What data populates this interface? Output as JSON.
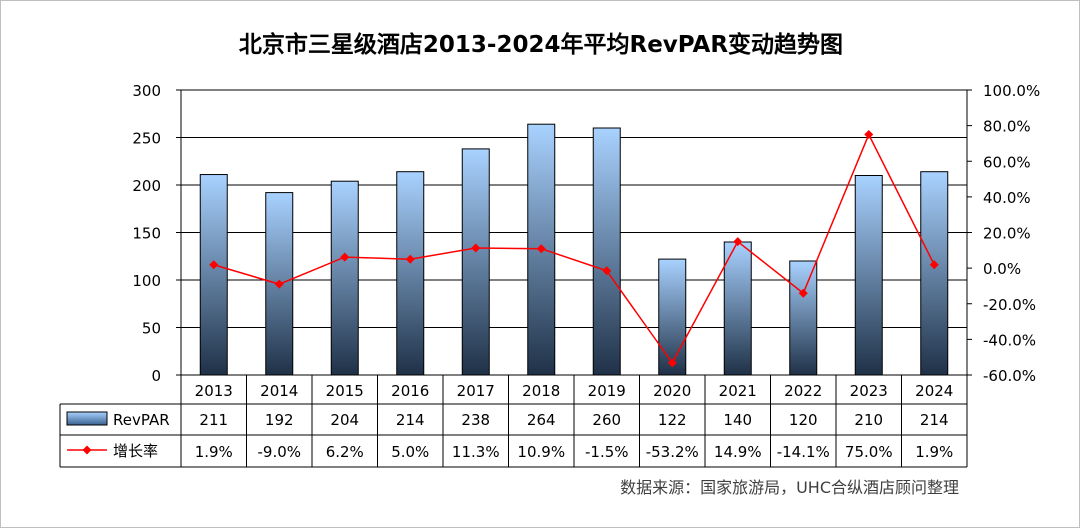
{
  "chart_data": {
    "type": "bar",
    "title": "北京市三星级酒店2013-2024年平均RevPAR变动趋势图",
    "categories": [
      "2013",
      "2014",
      "2015",
      "2016",
      "2017",
      "2018",
      "2019",
      "2020",
      "2021",
      "2022",
      "2023",
      "2024"
    ],
    "series": [
      {
        "name": "RevPAR",
        "type": "bar",
        "axis": "left",
        "values": [
          211,
          192,
          204,
          214,
          238,
          264,
          260,
          122,
          140,
          120,
          210,
          214
        ],
        "labels": [
          "211",
          "192",
          "204",
          "214",
          "238",
          "264",
          "260",
          "122",
          "140",
          "120",
          "210",
          "214"
        ],
        "color_top": "#a9d2ff",
        "color_bottom": "#1f3147"
      },
      {
        "name": "增长率",
        "type": "line",
        "axis": "right",
        "values": [
          1.9,
          -9.0,
          6.2,
          5.0,
          11.3,
          10.9,
          -1.5,
          -53.2,
          14.9,
          -14.1,
          75.0,
          1.9
        ],
        "labels": [
          "1.9%",
          "-9.0%",
          "6.2%",
          "5.0%",
          "11.3%",
          "10.9%",
          "-1.5%",
          "-53.2%",
          "14.9%",
          "-14.1%",
          "75.0%",
          "1.9%"
        ],
        "color": "#ff0000"
      }
    ],
    "y_left": {
      "ylim": [
        0,
        300
      ],
      "ticks": [
        "0",
        "50",
        "100",
        "150",
        "200",
        "250",
        "300"
      ]
    },
    "y_right": {
      "ylim": [
        -60,
        100
      ],
      "ticks": [
        "-60.0%",
        "-40.0%",
        "-20.0%",
        "0.0%",
        "20.0%",
        "40.0%",
        "60.0%",
        "80.0%",
        "100.0%"
      ]
    },
    "grid": true,
    "legend": "data-table"
  },
  "source_text": "数据来源：国家旅游局，UHC合纵酒店顾问整理"
}
